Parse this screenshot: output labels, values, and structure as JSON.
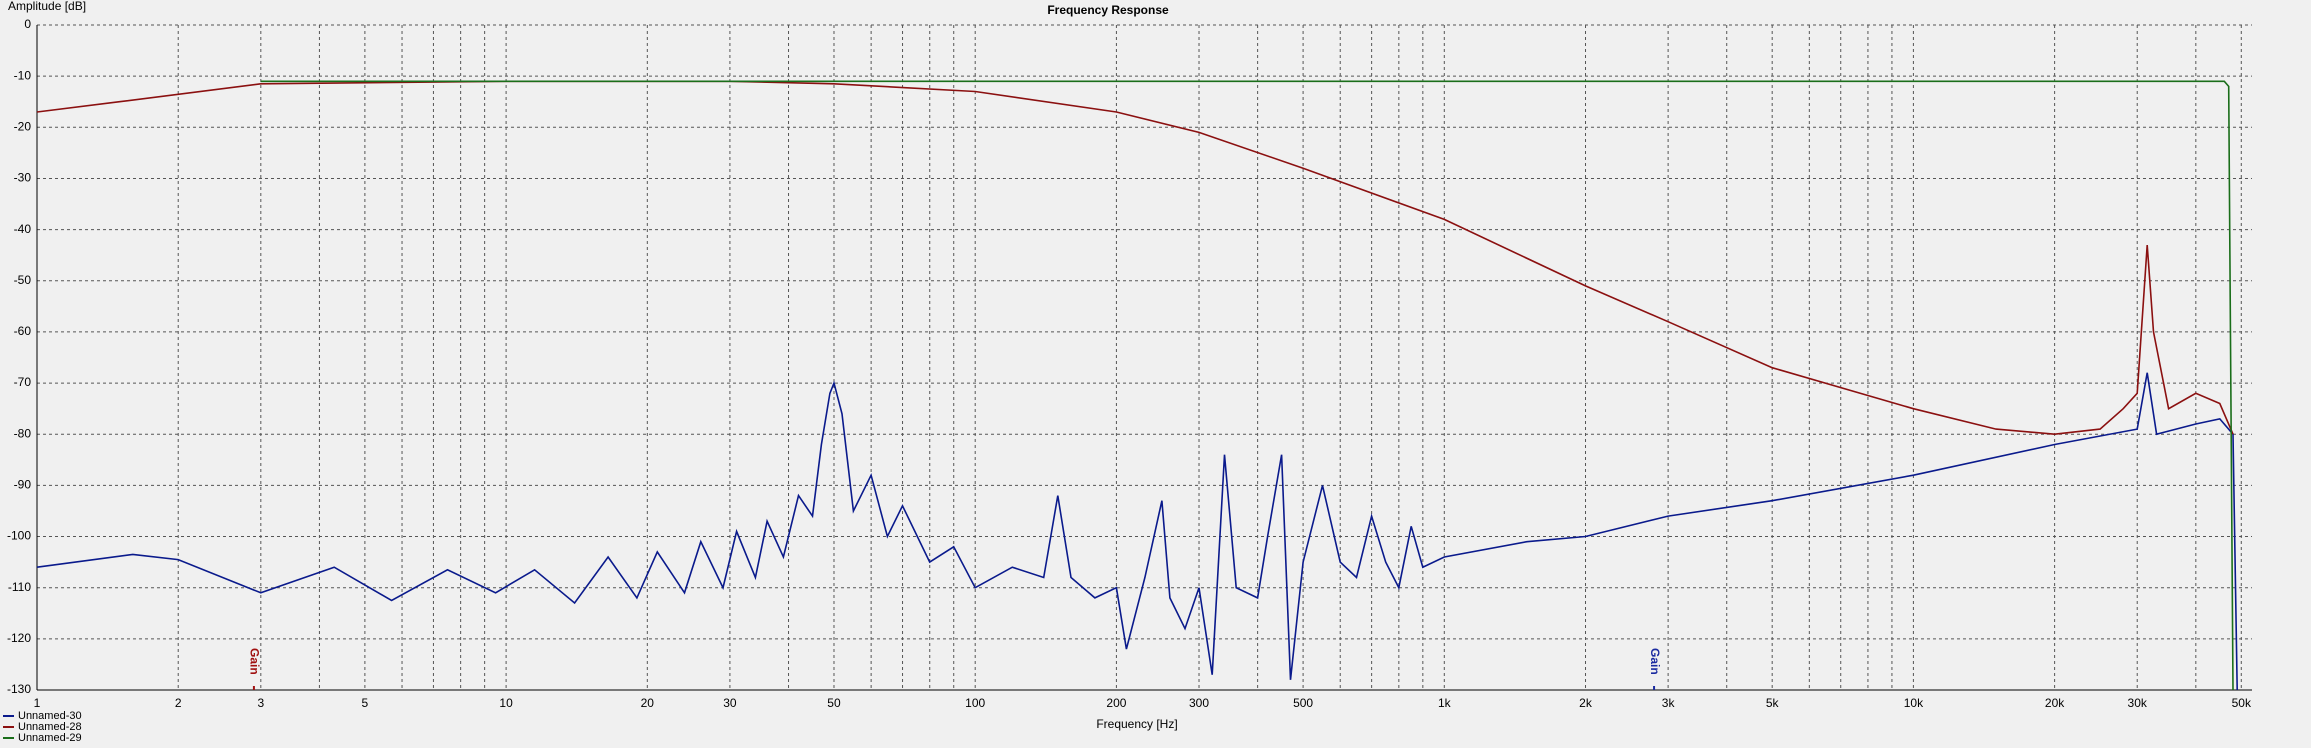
{
  "chart_data": {
    "type": "line",
    "title": "Frequency Response",
    "ylabel": "Amplitude [dB]",
    "xlabel": "Frequency [Hz]",
    "xscale": "log",
    "grid": true,
    "legend": "bottom-left",
    "xlim": [
      1,
      52700
    ],
    "ylim": [
      -130,
      0
    ],
    "yticks": [
      0,
      -10,
      -20,
      -30,
      -40,
      -50,
      -60,
      -70,
      -80,
      -90,
      -100,
      -110,
      -120,
      -130
    ],
    "xticks": [
      1,
      2,
      3,
      5,
      10,
      20,
      30,
      50,
      100,
      200,
      300,
      500,
      {
        "value": 1000,
        "label": "1k"
      },
      {
        "value": 2000,
        "label": "2k"
      },
      {
        "value": 3000,
        "label": "3k"
      },
      {
        "value": 5000,
        "label": "5k"
      },
      {
        "value": 10000,
        "label": "10k"
      },
      {
        "value": 20000,
        "label": "20k"
      },
      {
        "value": 30000,
        "label": "30k"
      },
      {
        "value": 50000,
        "label": "50k"
      }
    ],
    "x_minor_grid": [
      4,
      6,
      7,
      8,
      9,
      40,
      60,
      70,
      80,
      90,
      400,
      600,
      700,
      800,
      900,
      4000,
      6000,
      7000,
      8000,
      9000,
      40000
    ],
    "markers": [
      {
        "label": "Gain",
        "x": 2.9,
        "color": "#a01010"
      },
      {
        "label": "Gain",
        "x": 2800,
        "color": "#1a2aa0"
      }
    ],
    "series": [
      {
        "name": "Unnamed-30",
        "color": "#0a1a8c",
        "x": [
          1,
          1.6,
          2,
          3,
          4.3,
          5.7,
          7.5,
          9.5,
          11.5,
          14,
          16.5,
          19,
          21,
          24,
          26,
          29,
          31,
          34,
          36,
          39,
          42,
          45,
          47,
          49,
          50,
          52,
          55,
          60,
          65,
          70,
          80,
          90,
          100,
          120,
          140,
          150,
          160,
          180,
          200,
          210,
          230,
          250,
          260,
          280,
          300,
          320,
          340,
          360,
          400,
          420,
          450,
          470,
          500,
          550,
          600,
          650,
          700,
          750,
          800,
          850,
          900,
          1000,
          1500,
          2000,
          3000,
          5000,
          10000,
          20000,
          30000,
          31500,
          33000,
          40000,
          45000,
          48000,
          49000
        ],
        "values": [
          -106,
          -103.5,
          -104.5,
          -111,
          -106,
          -112.5,
          -106.5,
          -111,
          -106.5,
          -113,
          -104,
          -112,
          -103,
          -111,
          -101,
          -110,
          -99,
          -108,
          -97,
          -104,
          -92,
          -96,
          -82,
          -72,
          -70,
          -76,
          -95,
          -88,
          -100,
          -94,
          -105,
          -102,
          -110,
          -106,
          -108,
          -92,
          -108,
          -112,
          -110,
          -122,
          -108,
          -93,
          -112,
          -118,
          -110,
          -127,
          -84,
          -110,
          -112,
          -100,
          -84,
          -128,
          -105,
          -90,
          -105,
          -108,
          -96,
          -105,
          -110,
          -98,
          -106,
          -104,
          -101,
          -100,
          -96,
          -93,
          -88,
          -82,
          -79,
          -68,
          -80,
          -78,
          -77,
          -80,
          -130
        ]
      },
      {
        "name": "Unnamed-28",
        "color": "#8b1010",
        "x": [
          1,
          1.5,
          3,
          10,
          30,
          50,
          100,
          200,
          300,
          500,
          1000,
          2000,
          3000,
          5000,
          10000,
          15000,
          20000,
          25000,
          28000,
          30000,
          31500,
          32500,
          35000,
          40000,
          45000,
          48000
        ],
        "values": [
          -17,
          -15,
          -11.5,
          -11,
          -11,
          -11.5,
          -13,
          -17,
          -21,
          -28,
          -38,
          -51,
          -58,
          -67,
          -75,
          -79,
          -80,
          -79,
          -75,
          -72,
          -43,
          -60,
          -75,
          -72,
          -74,
          -80
        ]
      },
      {
        "name": "Unnamed-29",
        "color": "#1a6e1a",
        "x": [
          3,
          100,
          1000,
          10000,
          46000,
          47000,
          48000
        ],
        "values": [
          -11,
          -11,
          -11,
          -11,
          -11,
          -12,
          -130
        ]
      }
    ]
  }
}
